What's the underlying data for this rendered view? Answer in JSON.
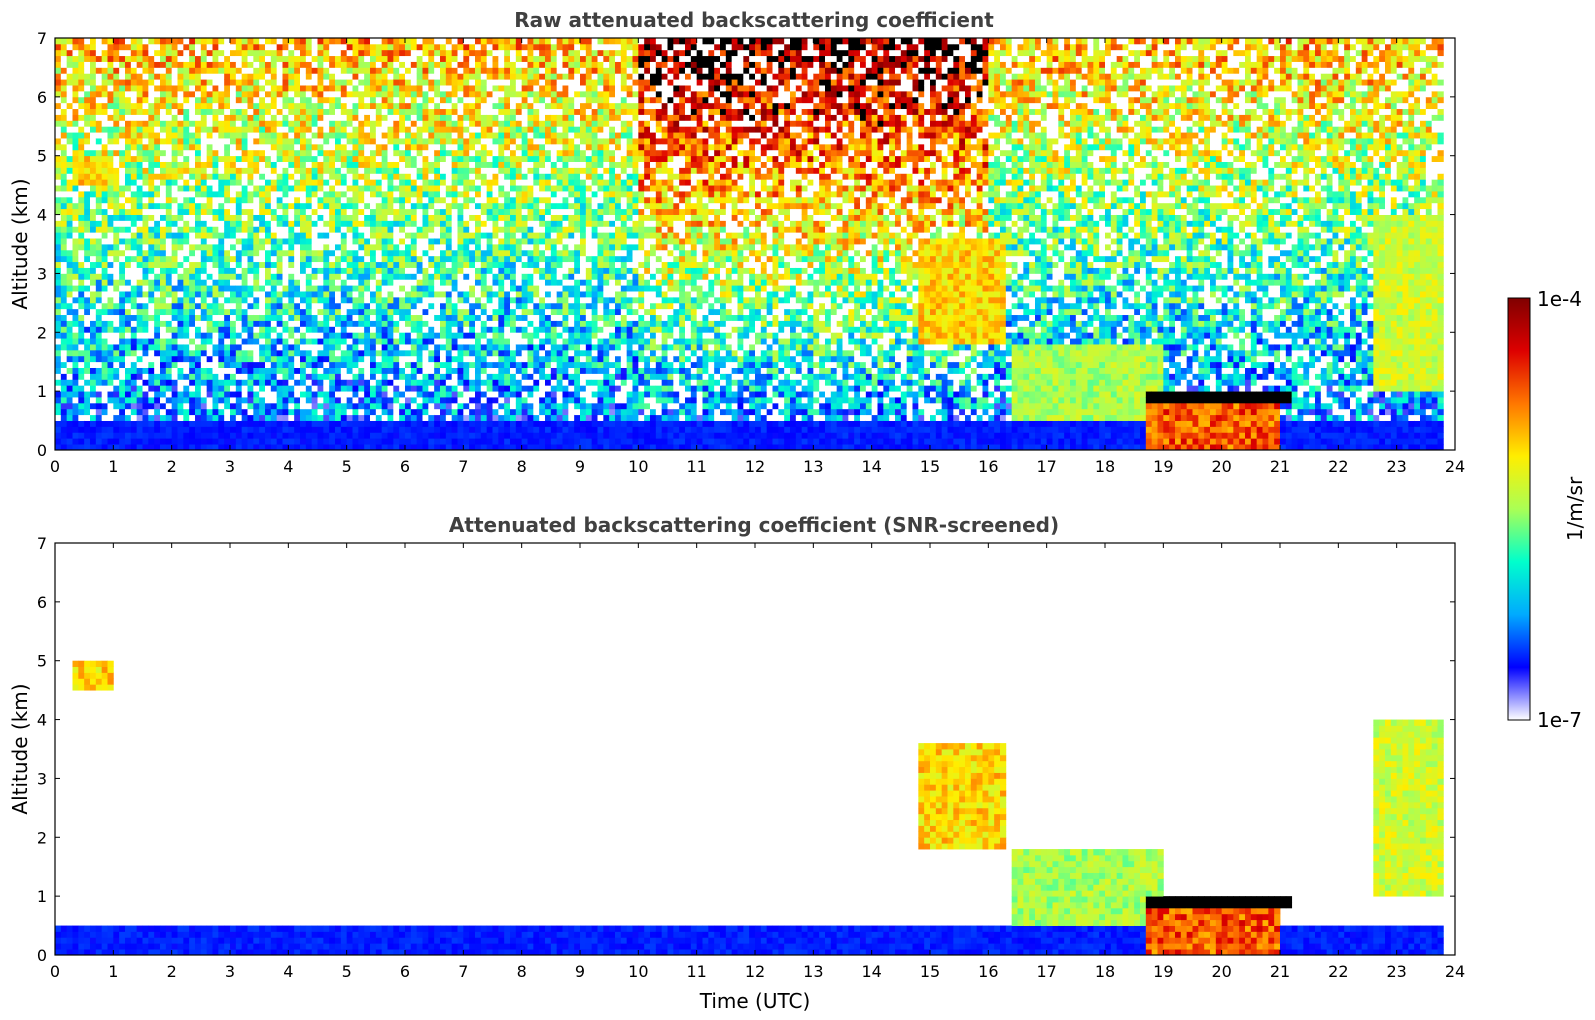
{
  "chart_data": [
    {
      "type": "heatmap",
      "title": "Raw attenuated backscattering coefficient",
      "xlabel": "",
      "ylabel": "Altitude (km)",
      "xlim": [
        0,
        24
      ],
      "ylim": [
        0,
        7
      ],
      "x_ticks": [
        "0",
        "1",
        "2",
        "3",
        "4",
        "5",
        "6",
        "7",
        "8",
        "9",
        "10",
        "11",
        "12",
        "13",
        "14",
        "15",
        "16",
        "17",
        "18",
        "19",
        "20",
        "21",
        "22",
        "23",
        "24"
      ],
      "y_ticks": [
        "0",
        "1",
        "2",
        "3",
        "4",
        "5",
        "6",
        "7"
      ],
      "screened": false,
      "features": [
        {
          "kind": "surface_layer",
          "t_start": 0,
          "t_end": 23.8,
          "alt_top": 0.5,
          "level": 0.12
        },
        {
          "kind": "boundary_layer",
          "t_start": 16.4,
          "t_end": 19.0,
          "alt_bottom": 0.5,
          "alt_top": 1.8,
          "level": 0.55
        },
        {
          "kind": "boundary_layer",
          "t_start": 18.7,
          "t_end": 21.0,
          "alt_bottom": 0.0,
          "alt_top": 1.0,
          "level": 0.85
        },
        {
          "kind": "cloud_base",
          "t_start": 18.7,
          "t_end": 21.2,
          "alt": 0.9,
          "level": 1.0
        },
        {
          "kind": "aerosol_streak",
          "t_start": 14.8,
          "t_end": 16.3,
          "alt_bottom": 1.8,
          "alt_top": 3.6,
          "level": 0.7
        },
        {
          "kind": "cirrus",
          "t_start": 22.6,
          "t_end": 23.8,
          "alt_bottom": 1.0,
          "alt_top": 4.0,
          "level": 0.6
        },
        {
          "kind": "elevated_layer",
          "t_start": 0.3,
          "t_end": 1.0,
          "alt_bottom": 4.5,
          "alt_top": 5.0,
          "level": 0.7
        }
      ]
    },
    {
      "type": "heatmap",
      "title": "Attenuated backscattering coefficient (SNR-screened)",
      "xlabel": "Time (UTC)",
      "ylabel": "Altitude (km)",
      "xlim": [
        0,
        24
      ],
      "ylim": [
        0,
        7
      ],
      "x_ticks": [
        "0",
        "1",
        "2",
        "3",
        "4",
        "5",
        "6",
        "7",
        "8",
        "9",
        "10",
        "11",
        "12",
        "13",
        "14",
        "15",
        "16",
        "17",
        "18",
        "19",
        "20",
        "21",
        "22",
        "23",
        "24"
      ],
      "y_ticks": [
        "0",
        "1",
        "2",
        "3",
        "4",
        "5",
        "6",
        "7"
      ],
      "screened": true,
      "features": [
        {
          "kind": "surface_layer",
          "t_start": 0,
          "t_end": 23.8,
          "alt_top": 0.5,
          "level": 0.12
        },
        {
          "kind": "boundary_layer",
          "t_start": 16.4,
          "t_end": 19.0,
          "alt_bottom": 0.5,
          "alt_top": 1.8,
          "level": 0.55
        },
        {
          "kind": "boundary_layer",
          "t_start": 18.7,
          "t_end": 21.0,
          "alt_bottom": 0.0,
          "alt_top": 1.0,
          "level": 0.85
        },
        {
          "kind": "cloud_base",
          "t_start": 18.7,
          "t_end": 21.2,
          "alt": 0.9,
          "level": 1.0
        },
        {
          "kind": "aerosol_streak",
          "t_start": 14.8,
          "t_end": 16.3,
          "alt_bottom": 1.8,
          "alt_top": 3.6,
          "level": 0.7
        },
        {
          "kind": "cirrus",
          "t_start": 22.6,
          "t_end": 23.8,
          "alt_bottom": 1.0,
          "alt_top": 4.0,
          "level": 0.6
        },
        {
          "kind": "elevated_layer",
          "t_start": 0.3,
          "t_end": 1.0,
          "alt_bottom": 4.5,
          "alt_top": 5.0,
          "level": 0.7
        }
      ]
    }
  ],
  "colorbar": {
    "label": "1/m/sr",
    "max_label": "1e-4",
    "min_label": "1e-7",
    "scale": "log",
    "colormap": [
      "#ffffff",
      "#0000ff",
      "#00aaff",
      "#00ffcc",
      "#aaff55",
      "#ffee00",
      "#ff7700",
      "#dd0000",
      "#800000"
    ]
  }
}
